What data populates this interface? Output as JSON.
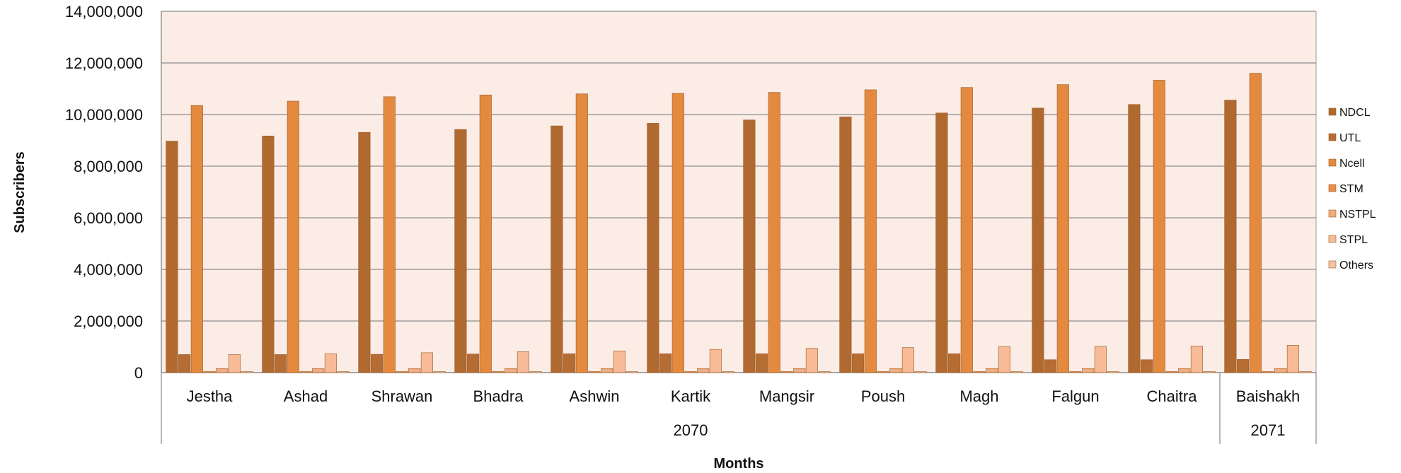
{
  "chart_data": {
    "type": "bar",
    "title": "",
    "xlabel": "Months",
    "ylabel": "Subscribers",
    "ylim": [
      0,
      14000000
    ],
    "yticks": [
      0,
      2000000,
      4000000,
      6000000,
      8000000,
      10000000,
      12000000,
      14000000
    ],
    "ytick_labels": [
      "0",
      "2,000,000",
      "4,000,000",
      "6,000,000",
      "8,000,000",
      "10,000,000",
      "12,000,000",
      "14,000,000"
    ],
    "grid": true,
    "legend_position": "right",
    "categories": [
      "Jestha",
      "Ashad",
      "Shrawan",
      "Bhadra",
      "Ashwin",
      "Kartik",
      "Mangsir",
      "Poush",
      "Magh",
      "Falgun",
      "Chaitra",
      "Baishakh"
    ],
    "year_groups": [
      {
        "label": "2070",
        "count": 11
      },
      {
        "label": "2071",
        "count": 1
      }
    ],
    "series": [
      {
        "name": "NDCL",
        "color": "#b06a30",
        "values": [
          8970000,
          9170000,
          9310000,
          9420000,
          9560000,
          9660000,
          9790000,
          9910000,
          10060000,
          10250000,
          10390000,
          10560000
        ]
      },
      {
        "name": "UTL",
        "color": "#b56d34",
        "values": [
          700000,
          700000,
          710000,
          720000,
          730000,
          730000,
          730000,
          730000,
          730000,
          500000,
          500000,
          510000
        ]
      },
      {
        "name": "Ncell",
        "color": "#e38a3f",
        "values": [
          10350000,
          10520000,
          10690000,
          10760000,
          10800000,
          10820000,
          10860000,
          10960000,
          11050000,
          11160000,
          11330000,
          11600000
        ]
      },
      {
        "name": "STM",
        "color": "#eb8f48",
        "values": [
          20000,
          20000,
          20000,
          20000,
          20000,
          20000,
          20000,
          20000,
          20000,
          20000,
          20000,
          20000
        ]
      },
      {
        "name": "NSTPL",
        "color": "#f2ab7d",
        "values": [
          160000,
          160000,
          160000,
          160000,
          160000,
          160000,
          160000,
          160000,
          160000,
          160000,
          160000,
          160000
        ]
      },
      {
        "name": "STPL",
        "color": "#f7bb97",
        "values": [
          700000,
          730000,
          770000,
          810000,
          840000,
          900000,
          940000,
          970000,
          1010000,
          1020000,
          1030000,
          1060000
        ]
      },
      {
        "name": "Others",
        "color": "#f9c3a3",
        "values": [
          20000,
          20000,
          20000,
          20000,
          20000,
          20000,
          20000,
          20000,
          20000,
          20000,
          20000,
          20000
        ]
      }
    ],
    "plot_background": "#fbece6",
    "gridline_color": "#8c8c8c"
  }
}
